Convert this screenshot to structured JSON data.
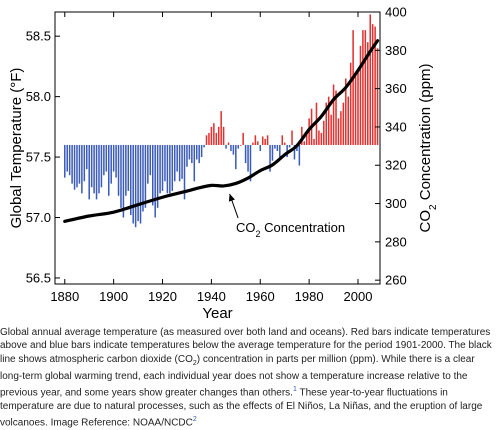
{
  "chart_data": {
    "type": "bar",
    "bar_baseline_f": 57.6,
    "x_ticks": [
      1880,
      1900,
      1920,
      1940,
      1960,
      1980,
      2000
    ],
    "xlabel": "Year",
    "xlim": [
      1876,
      2009
    ],
    "ylabel_left": "Global Temperature (°F)",
    "ylim_left": [
      56.45,
      58.7
    ],
    "y_ticks_left": [
      {
        "value": 56.5,
        "label": "56.5"
      },
      {
        "value": 57.0,
        "label": "57.0"
      },
      {
        "value": 57.5,
        "label": "57.5"
      },
      {
        "value": 58.0,
        "label": "58.0"
      },
      {
        "value": 58.5,
        "label": "58.5"
      }
    ],
    "ylabel_right_pre": "CO",
    "ylabel_right_sub": "2",
    "ylabel_right_post": " Concentration (ppm)",
    "ylim_right": [
      258,
      400
    ],
    "y_ticks_right": [
      260,
      280,
      300,
      320,
      340,
      360,
      380,
      400
    ],
    "colors": {
      "above": "#e0312f",
      "below": "#3b5bb8",
      "co2_line": "#000000"
    },
    "series": [
      {
        "kind": "bars",
        "x": [
          1880,
          1881,
          1882,
          1883,
          1884,
          1885,
          1886,
          1887,
          1888,
          1889,
          1890,
          1891,
          1892,
          1893,
          1894,
          1895,
          1896,
          1897,
          1898,
          1899,
          1900,
          1901,
          1902,
          1903,
          1904,
          1905,
          1906,
          1907,
          1908,
          1909,
          1910,
          1911,
          1912,
          1913,
          1914,
          1915,
          1916,
          1917,
          1918,
          1919,
          1920,
          1921,
          1922,
          1923,
          1924,
          1925,
          1926,
          1927,
          1928,
          1929,
          1930,
          1931,
          1932,
          1933,
          1934,
          1935,
          1936,
          1937,
          1938,
          1939,
          1940,
          1941,
          1942,
          1943,
          1944,
          1945,
          1946,
          1947,
          1948,
          1949,
          1950,
          1951,
          1952,
          1953,
          1954,
          1955,
          1956,
          1957,
          1958,
          1959,
          1960,
          1961,
          1962,
          1963,
          1964,
          1965,
          1966,
          1967,
          1968,
          1969,
          1970,
          1971,
          1972,
          1973,
          1974,
          1975,
          1976,
          1977,
          1978,
          1979,
          1980,
          1981,
          1982,
          1983,
          1984,
          1985,
          1986,
          1987,
          1988,
          1989,
          1990,
          1991,
          1992,
          1993,
          1994,
          1995,
          1996,
          1997,
          1998,
          1999,
          2000,
          2001,
          2002,
          2003,
          2004,
          2005,
          2006,
          2007,
          2008
        ],
        "values_f": [
          57.33,
          57.38,
          57.35,
          57.28,
          57.23,
          57.25,
          57.28,
          57.2,
          57.3,
          57.4,
          57.15,
          57.25,
          57.2,
          57.15,
          57.2,
          57.25,
          57.35,
          57.38,
          57.18,
          57.28,
          57.38,
          57.33,
          57.18,
          57.08,
          57.0,
          57.18,
          57.22,
          57.02,
          56.95,
          56.92,
          56.97,
          56.95,
          57.05,
          57.08,
          57.28,
          57.35,
          57.1,
          57.0,
          57.08,
          57.2,
          57.22,
          57.3,
          57.2,
          57.2,
          57.22,
          57.3,
          57.38,
          57.3,
          57.32,
          57.15,
          57.42,
          57.48,
          57.45,
          57.3,
          57.48,
          57.45,
          57.5,
          57.58,
          57.68,
          57.7,
          57.75,
          57.78,
          57.7,
          57.75,
          57.88,
          57.75,
          57.57,
          57.62,
          57.55,
          57.52,
          57.4,
          57.57,
          57.6,
          57.7,
          57.45,
          57.38,
          57.3,
          57.62,
          57.68,
          57.63,
          57.55,
          57.67,
          57.65,
          57.68,
          57.38,
          57.47,
          57.57,
          57.55,
          57.5,
          57.68,
          57.62,
          57.5,
          57.58,
          57.72,
          57.48,
          57.55,
          57.43,
          57.75,
          57.63,
          57.7,
          57.82,
          57.9,
          57.65,
          57.95,
          57.72,
          57.7,
          57.8,
          57.95,
          58.0,
          57.85,
          58.1,
          58.05,
          57.82,
          57.88,
          57.95,
          58.15,
          58.0,
          58.28,
          58.55,
          58.2,
          58.2,
          58.42,
          58.55,
          58.55,
          58.45,
          58.68,
          58.6,
          58.58,
          58.4
        ]
      },
      {
        "kind": "line",
        "name": "CO2 Concentration",
        "x": [
          1880,
          1890,
          1900,
          1910,
          1920,
          1930,
          1935,
          1940,
          1945,
          1950,
          1955,
          1960,
          1965,
          1970,
          1975,
          1980,
          1985,
          1990,
          1995,
          2000,
          2005,
          2008
        ],
        "values_ppm": [
          290.7,
          293.5,
          295.5,
          299.4,
          303.3,
          306.5,
          308.2,
          309.5,
          309.2,
          310.5,
          313.3,
          317.2,
          320.2,
          325.5,
          330.2,
          338.7,
          345.5,
          354.3,
          360.6,
          369.5,
          379.4,
          385.0
        ]
      }
    ],
    "annotation": {
      "pre": "CO",
      "sub": "2",
      "post": " Concentration"
    }
  },
  "caption": {
    "part1": "Global annual average temperature (as measured over both land and oceans). Red bars indicate temperatures above and blue bars indicate temperatures below the average temperature for the period 1901-2000. The black line shows atmospheric carbon dioxide (CO",
    "sub": "2",
    "part2": ") concentration in parts per million (ppm). While there is a clear long-term global warming trend, each individual year does not show a temperature increase relative to the previous year, and some years show greater changes than others.",
    "footnote1": "1",
    "part3": " These year-to-year fluctuations in temperature are due to natural processes, such as the effects of El Niños, La Niñas, and the eruption of large volcanoes.  Image Reference: NOAA/NCDC",
    "footnote2": "2"
  }
}
